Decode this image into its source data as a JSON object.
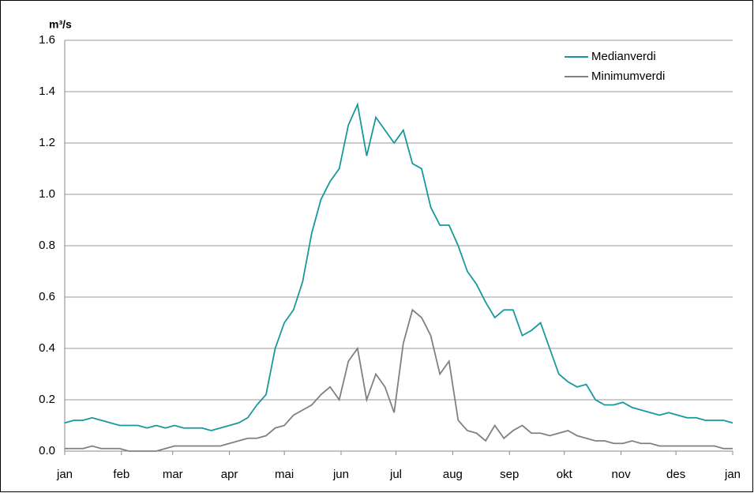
{
  "chart_data": {
    "type": "line",
    "y_label": "m³/s",
    "x": [
      0,
      5,
      10,
      15,
      20,
      25,
      30,
      35,
      40,
      45,
      50,
      55,
      60,
      65,
      70,
      75,
      80,
      85,
      90,
      95,
      100,
      105,
      110,
      115,
      120,
      125,
      130,
      135,
      140,
      145,
      150,
      155,
      160,
      165,
      170,
      175,
      180,
      185,
      190,
      195,
      200,
      205,
      210,
      215,
      220,
      225,
      230,
      235,
      240,
      245,
      250,
      255,
      260,
      265,
      270,
      275,
      280,
      285,
      290,
      295,
      300,
      305,
      310,
      315,
      320,
      325,
      330,
      335,
      340,
      345,
      350,
      355,
      360,
      365
    ],
    "series": [
      {
        "name": "Medianverdi",
        "color": "#17989a",
        "values": [
          0.11,
          0.12,
          0.12,
          0.13,
          0.12,
          0.11,
          0.1,
          0.1,
          0.1,
          0.09,
          0.1,
          0.09,
          0.1,
          0.09,
          0.09,
          0.09,
          0.08,
          0.09,
          0.1,
          0.11,
          0.13,
          0.18,
          0.22,
          0.4,
          0.5,
          0.55,
          0.66,
          0.85,
          0.98,
          1.05,
          1.1,
          1.27,
          1.35,
          1.15,
          1.3,
          1.25,
          1.2,
          1.25,
          1.12,
          1.1,
          0.95,
          0.88,
          0.88,
          0.8,
          0.7,
          0.65,
          0.58,
          0.52,
          0.55,
          0.55,
          0.45,
          0.47,
          0.5,
          0.4,
          0.3,
          0.27,
          0.25,
          0.26,
          0.2,
          0.18,
          0.18,
          0.19,
          0.17,
          0.16,
          0.15,
          0.14,
          0.15,
          0.14,
          0.13,
          0.13,
          0.12,
          0.12,
          0.12,
          0.11
        ]
      },
      {
        "name": "Minimumverdi",
        "color": "#808080",
        "values": [
          0.01,
          0.01,
          0.01,
          0.02,
          0.01,
          0.01,
          0.01,
          0.0,
          0.0,
          0.0,
          0.0,
          0.01,
          0.02,
          0.02,
          0.02,
          0.02,
          0.02,
          0.02,
          0.03,
          0.04,
          0.05,
          0.05,
          0.06,
          0.09,
          0.1,
          0.14,
          0.16,
          0.18,
          0.22,
          0.25,
          0.2,
          0.35,
          0.4,
          0.2,
          0.3,
          0.25,
          0.15,
          0.42,
          0.55,
          0.52,
          0.45,
          0.3,
          0.35,
          0.12,
          0.08,
          0.07,
          0.04,
          0.1,
          0.05,
          0.08,
          0.1,
          0.07,
          0.07,
          0.06,
          0.07,
          0.08,
          0.06,
          0.05,
          0.04,
          0.04,
          0.03,
          0.03,
          0.04,
          0.03,
          0.03,
          0.02,
          0.02,
          0.02,
          0.02,
          0.02,
          0.02,
          0.02,
          0.01,
          0.01
        ]
      }
    ],
    "xlim": [
      0,
      365
    ],
    "xticks": [
      {
        "value": 0,
        "label": "jan"
      },
      {
        "value": 31,
        "label": "feb"
      },
      {
        "value": 59,
        "label": "mar"
      },
      {
        "value": 90,
        "label": "apr"
      },
      {
        "value": 120,
        "label": "mai"
      },
      {
        "value": 151,
        "label": "jun"
      },
      {
        "value": 181,
        "label": "jul"
      },
      {
        "value": 212,
        "label": "aug"
      },
      {
        "value": 243,
        "label": "sep"
      },
      {
        "value": 273,
        "label": "okt"
      },
      {
        "value": 304,
        "label": "nov"
      },
      {
        "value": 334,
        "label": "des"
      },
      {
        "value": 365,
        "label": "jan"
      }
    ],
    "ylim": [
      0,
      1.6
    ],
    "yticks": [
      {
        "value": 0,
        "label": "0.0"
      },
      0.2,
      0.4,
      0.6,
      0.8,
      {
        "value": 1,
        "label": "1.0"
      },
      1.2,
      1.4,
      1.6
    ],
    "grid": true,
    "legend": "top-right"
  }
}
